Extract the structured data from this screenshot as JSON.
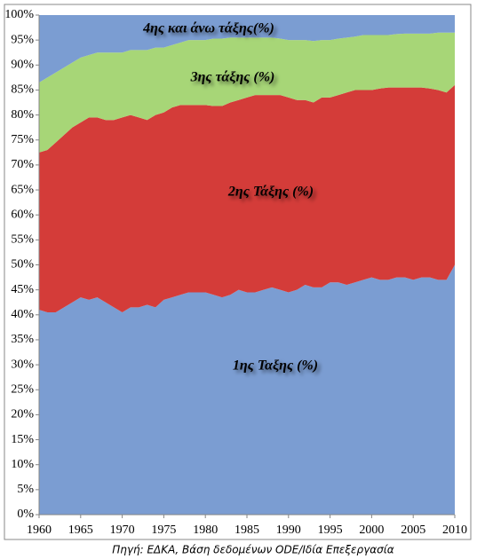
{
  "chart_data": {
    "type": "stacked-area",
    "source": "Πηγή: ΕΔΚΑ, Βάση δεδομένων ODE/Ιδία Επεξεργασία",
    "x": [
      1960,
      1961,
      1962,
      1963,
      1964,
      1965,
      1966,
      1967,
      1968,
      1969,
      1970,
      1971,
      1972,
      1973,
      1974,
      1975,
      1976,
      1977,
      1978,
      1979,
      1980,
      1981,
      1982,
      1983,
      1984,
      1985,
      1986,
      1987,
      1988,
      1989,
      1990,
      1991,
      1992,
      1993,
      1994,
      1995,
      1996,
      1997,
      1998,
      1999,
      2000,
      2001,
      2002,
      2003,
      2004,
      2005,
      2006,
      2007,
      2008,
      2009,
      2010
    ],
    "xlim": [
      1960,
      2010
    ],
    "xticks": [
      1960,
      1965,
      1970,
      1975,
      1980,
      1985,
      1990,
      1995,
      2000,
      2005,
      2010
    ],
    "ylim": [
      0,
      100
    ],
    "yticks": [
      {
        "value": 0,
        "label": "0%"
      },
      {
        "value": 5,
        "label": "5%"
      },
      {
        "value": 10,
        "label": "10%"
      },
      {
        "value": 15,
        "label": "15%"
      },
      {
        "value": 20,
        "label": "20%"
      },
      {
        "value": 25,
        "label": "25%"
      },
      {
        "value": 30,
        "label": "30%"
      },
      {
        "value": 35,
        "label": "35%"
      },
      {
        "value": 40,
        "label": "40%"
      },
      {
        "value": 45,
        "label": "45%"
      },
      {
        "value": 50,
        "label": "50%"
      },
      {
        "value": 55,
        "label": "55%"
      },
      {
        "value": 60,
        "label": "60%"
      },
      {
        "value": 65,
        "label": "65%"
      },
      {
        "value": 70,
        "label": "70%"
      },
      {
        "value": 75,
        "label": "75%"
      },
      {
        "value": 80,
        "label": "80%"
      },
      {
        "value": 85,
        "label": "85%"
      },
      {
        "value": 90,
        "label": "90%"
      },
      {
        "value": 95,
        "label": "95%"
      },
      {
        "value": 100,
        "label": "100%"
      }
    ],
    "series": [
      {
        "name": "1ης Ταξης (%)",
        "color": "#7b9dd2",
        "values": [
          41,
          40.5,
          40.5,
          41.5,
          42.5,
          43.5,
          43,
          43.5,
          42.5,
          41.5,
          40.5,
          41.5,
          41.5,
          42,
          41.5,
          43,
          43.5,
          44,
          44.5,
          44.5,
          44.5,
          44,
          43.5,
          44,
          45,
          44.5,
          44.5,
          45,
          45.5,
          45,
          44.5,
          45,
          46,
          45.5,
          45.5,
          46.5,
          46.5,
          46,
          46.5,
          47,
          47.5,
          47,
          47,
          47.5,
          47.5,
          47,
          47.5,
          47.5,
          47,
          47,
          50
        ]
      },
      {
        "name": "2ης Τάξης (%)",
        "color": "#d43c39",
        "values": [
          31.5,
          32.5,
          34,
          34.5,
          35,
          35,
          36.5,
          36,
          36.5,
          37.5,
          39,
          38.5,
          38,
          37,
          38.5,
          37.5,
          38,
          38,
          37.5,
          37.5,
          37.5,
          37.8,
          38.3,
          38.5,
          38,
          39,
          39.5,
          39,
          38.5,
          39,
          39,
          38,
          37,
          37,
          38,
          37,
          37.5,
          38.5,
          38.5,
          38,
          37.5,
          38.3,
          38.5,
          38,
          38,
          38.5,
          38,
          37.8,
          38,
          37.5,
          36
        ]
      },
      {
        "name": "3ης τάξης (%)",
        "color": "#a7d677",
        "values": [
          14,
          14.5,
          14,
          13.5,
          13,
          13,
          12.5,
          13,
          13.5,
          13.5,
          13,
          13,
          13.5,
          14,
          13.5,
          13,
          12.5,
          12.5,
          13,
          13,
          13,
          13.5,
          13.5,
          13,
          12.5,
          12,
          11.5,
          11.5,
          11.5,
          11.3,
          11.5,
          12,
          12,
          12.3,
          11.5,
          11.5,
          11.3,
          11,
          10.7,
          11,
          11,
          10.7,
          10.5,
          10.7,
          10.8,
          10.8,
          10.8,
          11,
          11.5,
          12,
          10.5
        ]
      },
      {
        "name": "4ης και άνω τάξης(%)",
        "color": "#7b9dd2",
        "values": [
          13.5,
          12.5,
          11.5,
          10.5,
          9.5,
          8.5,
          8,
          7.5,
          7.5,
          7.5,
          7.5,
          7,
          7,
          7,
          6.5,
          6.5,
          6,
          5.5,
          5,
          5,
          5,
          4.7,
          4.7,
          4.5,
          4.5,
          4.5,
          4.5,
          4.5,
          4.5,
          4.7,
          5,
          5,
          5,
          5.2,
          5,
          5,
          4.7,
          4.5,
          4.3,
          4,
          4,
          4,
          4,
          3.8,
          3.7,
          3.7,
          3.7,
          3.7,
          3.5,
          3.5,
          3.5
        ]
      }
    ]
  }
}
